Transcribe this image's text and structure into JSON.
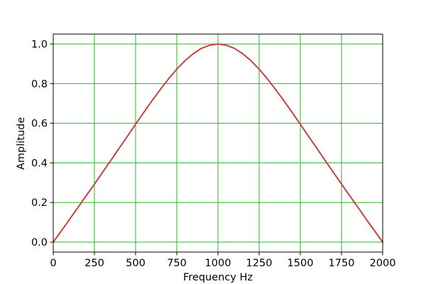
{
  "chart_data": {
    "type": "line",
    "title": "",
    "xlabel": "Frequency Hz",
    "ylabel": "Amplitude",
    "xlim": [
      0,
      2000
    ],
    "ylim": [
      -0.05,
      1.05
    ],
    "xticks": {
      "values": [
        0,
        250,
        500,
        750,
        1000,
        1250,
        1500,
        1750,
        2000
      ],
      "labels": [
        "0",
        "250",
        "500",
        "750",
        "1000",
        "1250",
        "1500",
        "1750",
        "2000"
      ]
    },
    "yticks": {
      "values": [
        0.0,
        0.2,
        0.4,
        0.6,
        0.8,
        1.0
      ],
      "labels": [
        "0.0",
        "0.2",
        "0.4",
        "0.6",
        "0.8",
        "1.0"
      ]
    },
    "grid": {
      "show": true,
      "color": "#2cb22c"
    },
    "legend": {
      "show": false
    },
    "background_color": "#ffffff",
    "spine_color": "#000000",
    "series": [
      {
        "name": "amplitude-response",
        "color": "#c8413c",
        "line_width": 2,
        "x": [
          0,
          50,
          100,
          150,
          200,
          250,
          300,
          350,
          400,
          450,
          500,
          550,
          600,
          650,
          700,
          750,
          800,
          850,
          900,
          950,
          1000,
          1050,
          1100,
          1150,
          1200,
          1250,
          1300,
          1350,
          1400,
          1450,
          1500,
          1550,
          1600,
          1650,
          1700,
          1750,
          1800,
          1850,
          1900,
          1950,
          2000
        ],
        "y": [
          0,
          0.058,
          0.116,
          0.175,
          0.234,
          0.293,
          0.353,
          0.413,
          0.474,
          0.534,
          0.595,
          0.655,
          0.714,
          0.77,
          0.824,
          0.873,
          0.916,
          0.951,
          0.978,
          0.994,
          1.0,
          0.994,
          0.978,
          0.951,
          0.916,
          0.873,
          0.824,
          0.77,
          0.714,
          0.655,
          0.595,
          0.534,
          0.474,
          0.413,
          0.353,
          0.293,
          0.234,
          0.175,
          0.116,
          0.058,
          0
        ]
      }
    ]
  }
}
